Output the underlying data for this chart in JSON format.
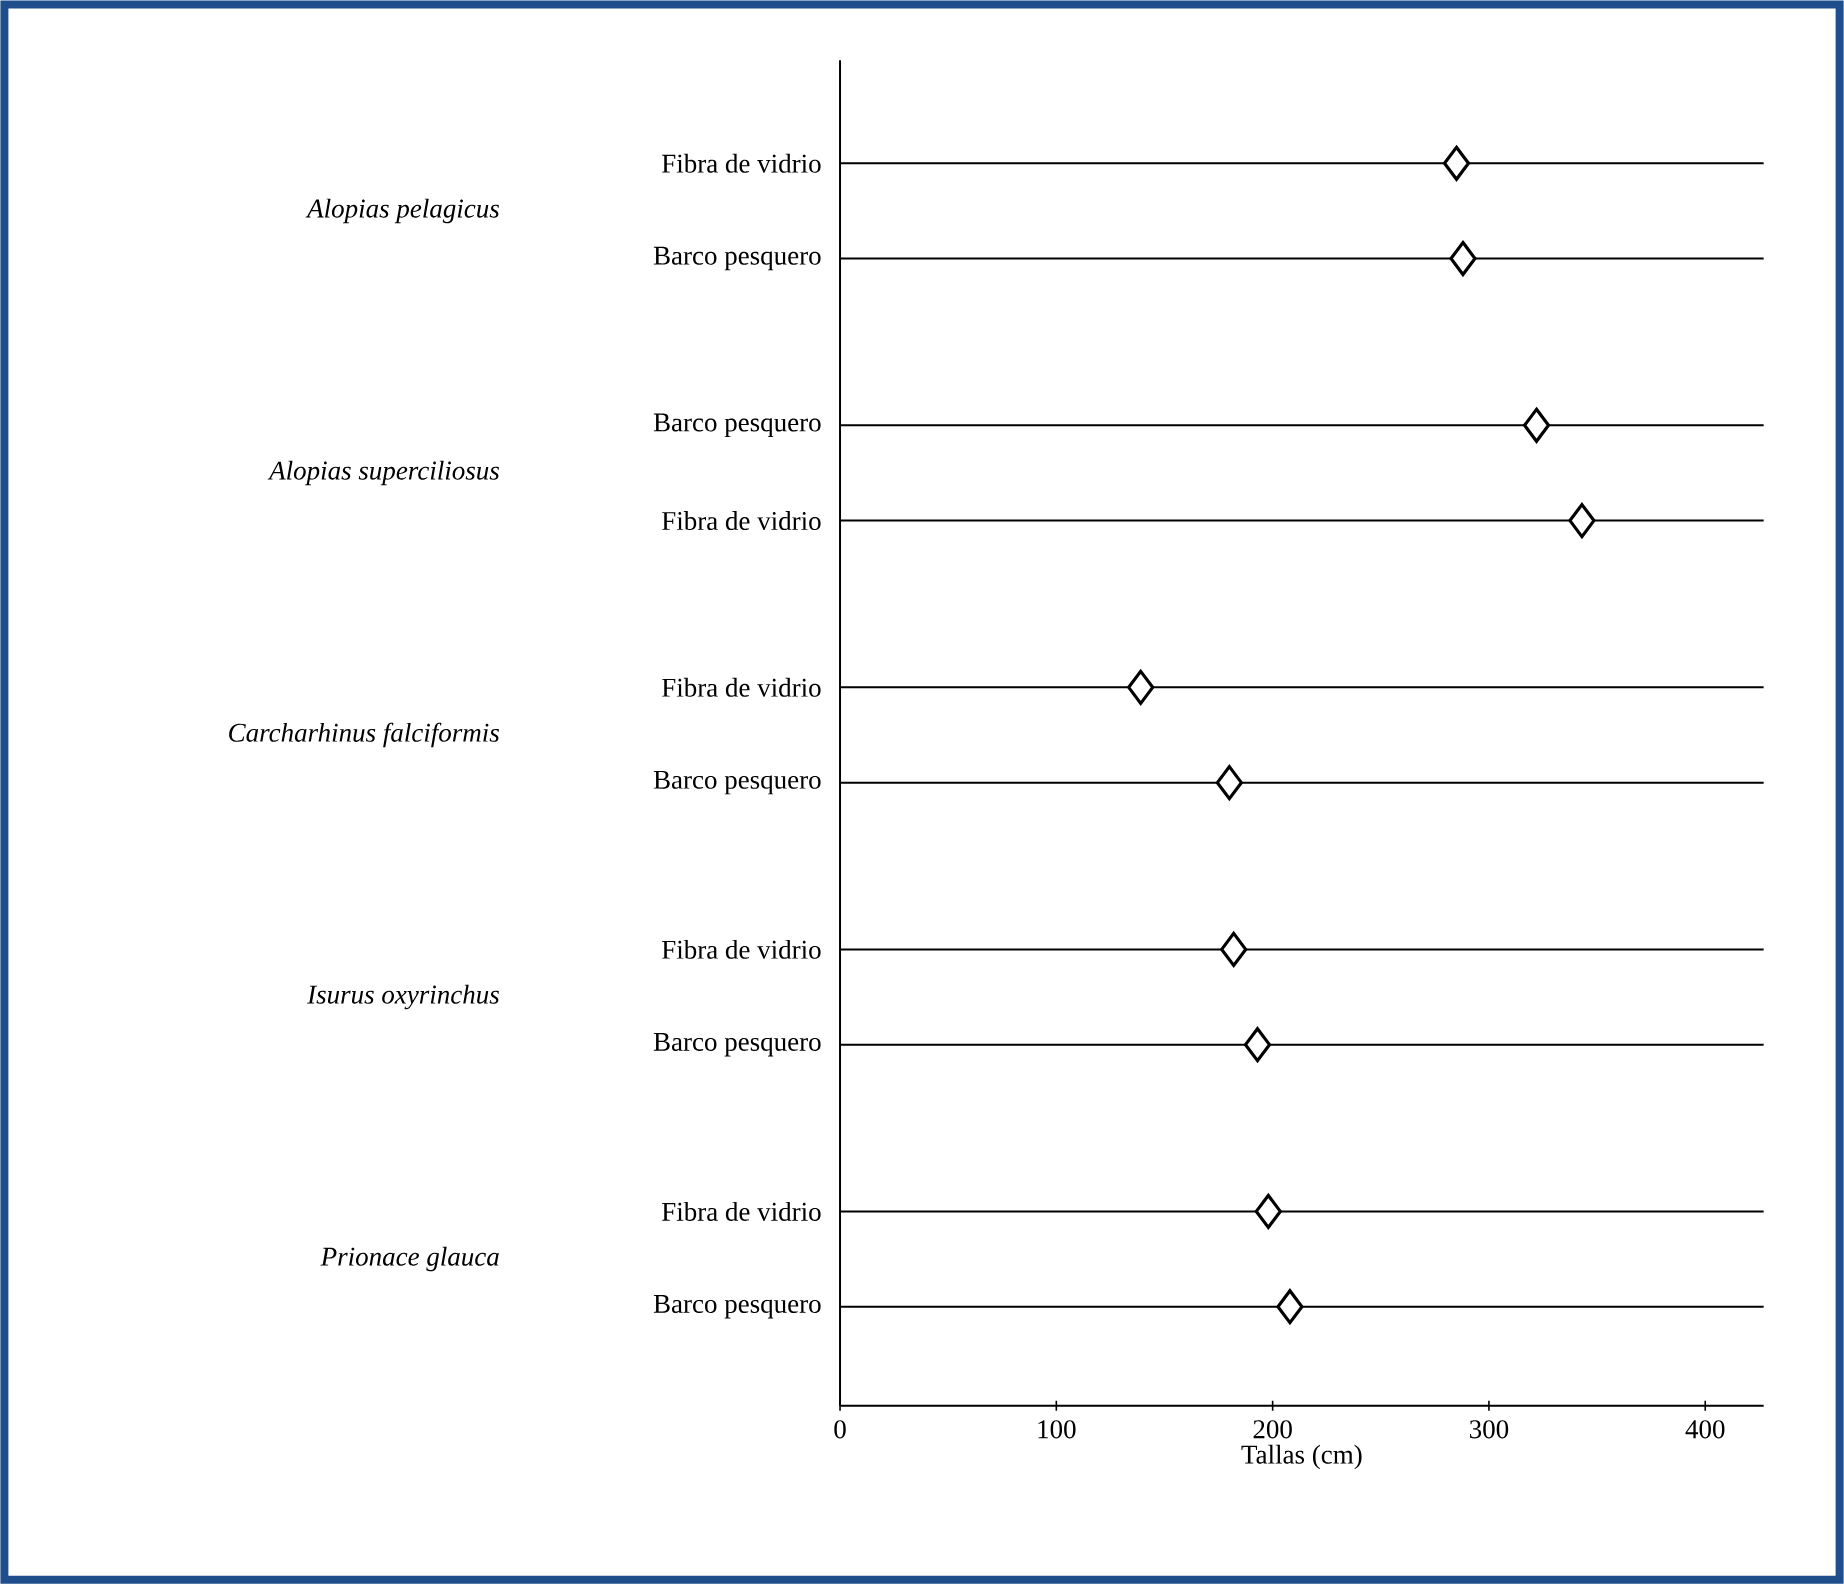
{
  "chart_data": {
    "type": "scatter",
    "orientation": "horizontal",
    "marker": "diamond",
    "grid": "y",
    "color": "#000000",
    "categories": [
      "Fibra de vidrio",
      "Barco pesquero",
      "Barco pesquero",
      "Fibra de vidrio",
      "Fibra de vidrio",
      "Barco pesquero",
      "Fibra de vidrio",
      "Barco pesquero",
      "Fibra de vidrio",
      "Barco pesquero"
    ],
    "values": [
      285,
      288,
      322,
      343,
      139,
      180,
      182,
      193,
      198,
      208
    ],
    "xlabel": "Tallas (cm)",
    "xlim": [
      0,
      427
    ],
    "xticks": [
      0,
      100,
      200,
      300,
      400
    ],
    "annotations": [
      "Alopias pelagicus",
      "Alopias superciliosus",
      "Carcharhinus falciformis",
      "Isurus oxyrinchus",
      "Prionace glauca"
    ]
  }
}
